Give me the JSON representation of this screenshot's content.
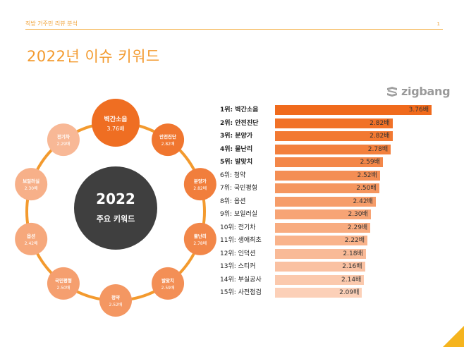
{
  "header": {
    "label": "직방 거주민 리뷰 분석",
    "page_number": "1"
  },
  "page_title": "2022년 이슈 키워드",
  "brand": {
    "name": "zigbang",
    "icon": "zigbang-logo-icon",
    "color": "#9A9A9A"
  },
  "center": {
    "year": "2022",
    "subtitle": "주요 키워드"
  },
  "colors": {
    "accent": "#F39A2E",
    "dark_circle": "#3F3F3F",
    "rule": "#F5B24A"
  },
  "chart_data": {
    "type": "bar",
    "orientation": "horizontal",
    "title": "",
    "xlabel": "",
    "ylabel": "",
    "xlim": [
      0,
      3.76
    ],
    "categories": [
      "1위: 벽간소음",
      "2위: 안전진단",
      "3위: 분양가",
      "4위: 물난리",
      "5위: 발맞치",
      "6위: 청약",
      "7위: 국민평형",
      "8위: 옵션",
      "9위: 보일러실",
      "10위: 전기차",
      "11위: 생애최초",
      "12위: 인덕션",
      "13위: 스티커",
      "14위: 부실공사",
      "15위: 사전점검"
    ],
    "values": [
      3.76,
      2.82,
      2.82,
      2.78,
      2.59,
      2.52,
      2.5,
      2.42,
      2.3,
      2.29,
      2.22,
      2.18,
      2.16,
      2.14,
      2.09
    ],
    "value_labels": [
      "3.76배",
      "2.82배",
      "2.82배",
      "2.78배",
      "2.59배",
      "2.52배",
      "2.50배",
      "2.42배",
      "2.30배",
      "2.29배",
      "2.22배",
      "2.18배",
      "2.16배",
      "2.14배",
      "2.09배"
    ],
    "wheel_labels": [
      "벽간소음",
      "안전진단",
      "분양가",
      "물난리",
      "발맞치",
      "청약",
      "국민평형",
      "옵션",
      "보일러실",
      "전기차"
    ],
    "wheel_values": [
      "3.76배",
      "2.82배",
      "2.82배",
      "2.78배",
      "2.59배",
      "2.52배",
      "2.50배",
      "2.42배",
      "2.30배",
      "2.29배"
    ]
  }
}
